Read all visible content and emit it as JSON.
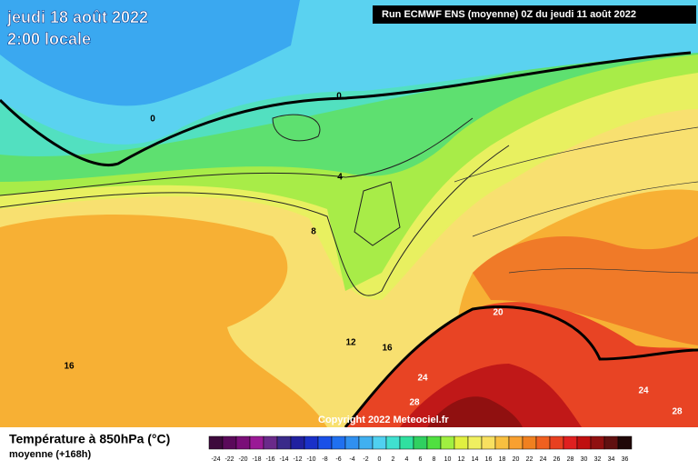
{
  "header": {
    "date": "jeudi 18 août 2022",
    "time": "2:00 locale",
    "run": "Run ECMWF ENS (moyenne) 0Z du jeudi 11 août 2022"
  },
  "map": {
    "contour_labels": [
      "0",
      "0",
      "4",
      "8",
      "12",
      "16",
      "16",
      "20",
      "24",
      "24",
      "28",
      "28"
    ],
    "copyright": "Copyright 2022 Meteociel.fr"
  },
  "legend": {
    "title": "Température à 850hPa (°C)",
    "subtitle": "moyenne  (+168h)",
    "scale": [
      {
        "value": -24,
        "color": "#3d0a3c"
      },
      {
        "value": -22,
        "color": "#5a0a5a"
      },
      {
        "value": -20,
        "color": "#7a0f78"
      },
      {
        "value": -18,
        "color": "#9a1a96"
      },
      {
        "value": -16,
        "color": "#6a2a8a"
      },
      {
        "value": -14,
        "color": "#3a2a8a"
      },
      {
        "value": -12,
        "color": "#2020a0"
      },
      {
        "value": -10,
        "color": "#1a30c8"
      },
      {
        "value": -8,
        "color": "#1a50e8"
      },
      {
        "value": -6,
        "color": "#2070f0"
      },
      {
        "value": -4,
        "color": "#3090f0"
      },
      {
        "value": -2,
        "color": "#40b0f0"
      },
      {
        "value": 0,
        "color": "#50d0f0"
      },
      {
        "value": 2,
        "color": "#40e0d0"
      },
      {
        "value": 4,
        "color": "#30e0a0"
      },
      {
        "value": 6,
        "color": "#30d060"
      },
      {
        "value": 8,
        "color": "#50e040"
      },
      {
        "value": 10,
        "color": "#a0f040"
      },
      {
        "value": 12,
        "color": "#e0f040"
      },
      {
        "value": 14,
        "color": "#f0f060"
      },
      {
        "value": 16,
        "color": "#f8e060"
      },
      {
        "value": 18,
        "color": "#f8c040"
      },
      {
        "value": 20,
        "color": "#f8a030"
      },
      {
        "value": 22,
        "color": "#f08020"
      },
      {
        "value": 24,
        "color": "#f06020"
      },
      {
        "value": 26,
        "color": "#e84020"
      },
      {
        "value": 28,
        "color": "#e02020"
      },
      {
        "value": 30,
        "color": "#c01010"
      },
      {
        "value": 32,
        "color": "#901010"
      },
      {
        "value": 34,
        "color": "#601010"
      },
      {
        "value": 36,
        "color": "#200808"
      }
    ]
  }
}
